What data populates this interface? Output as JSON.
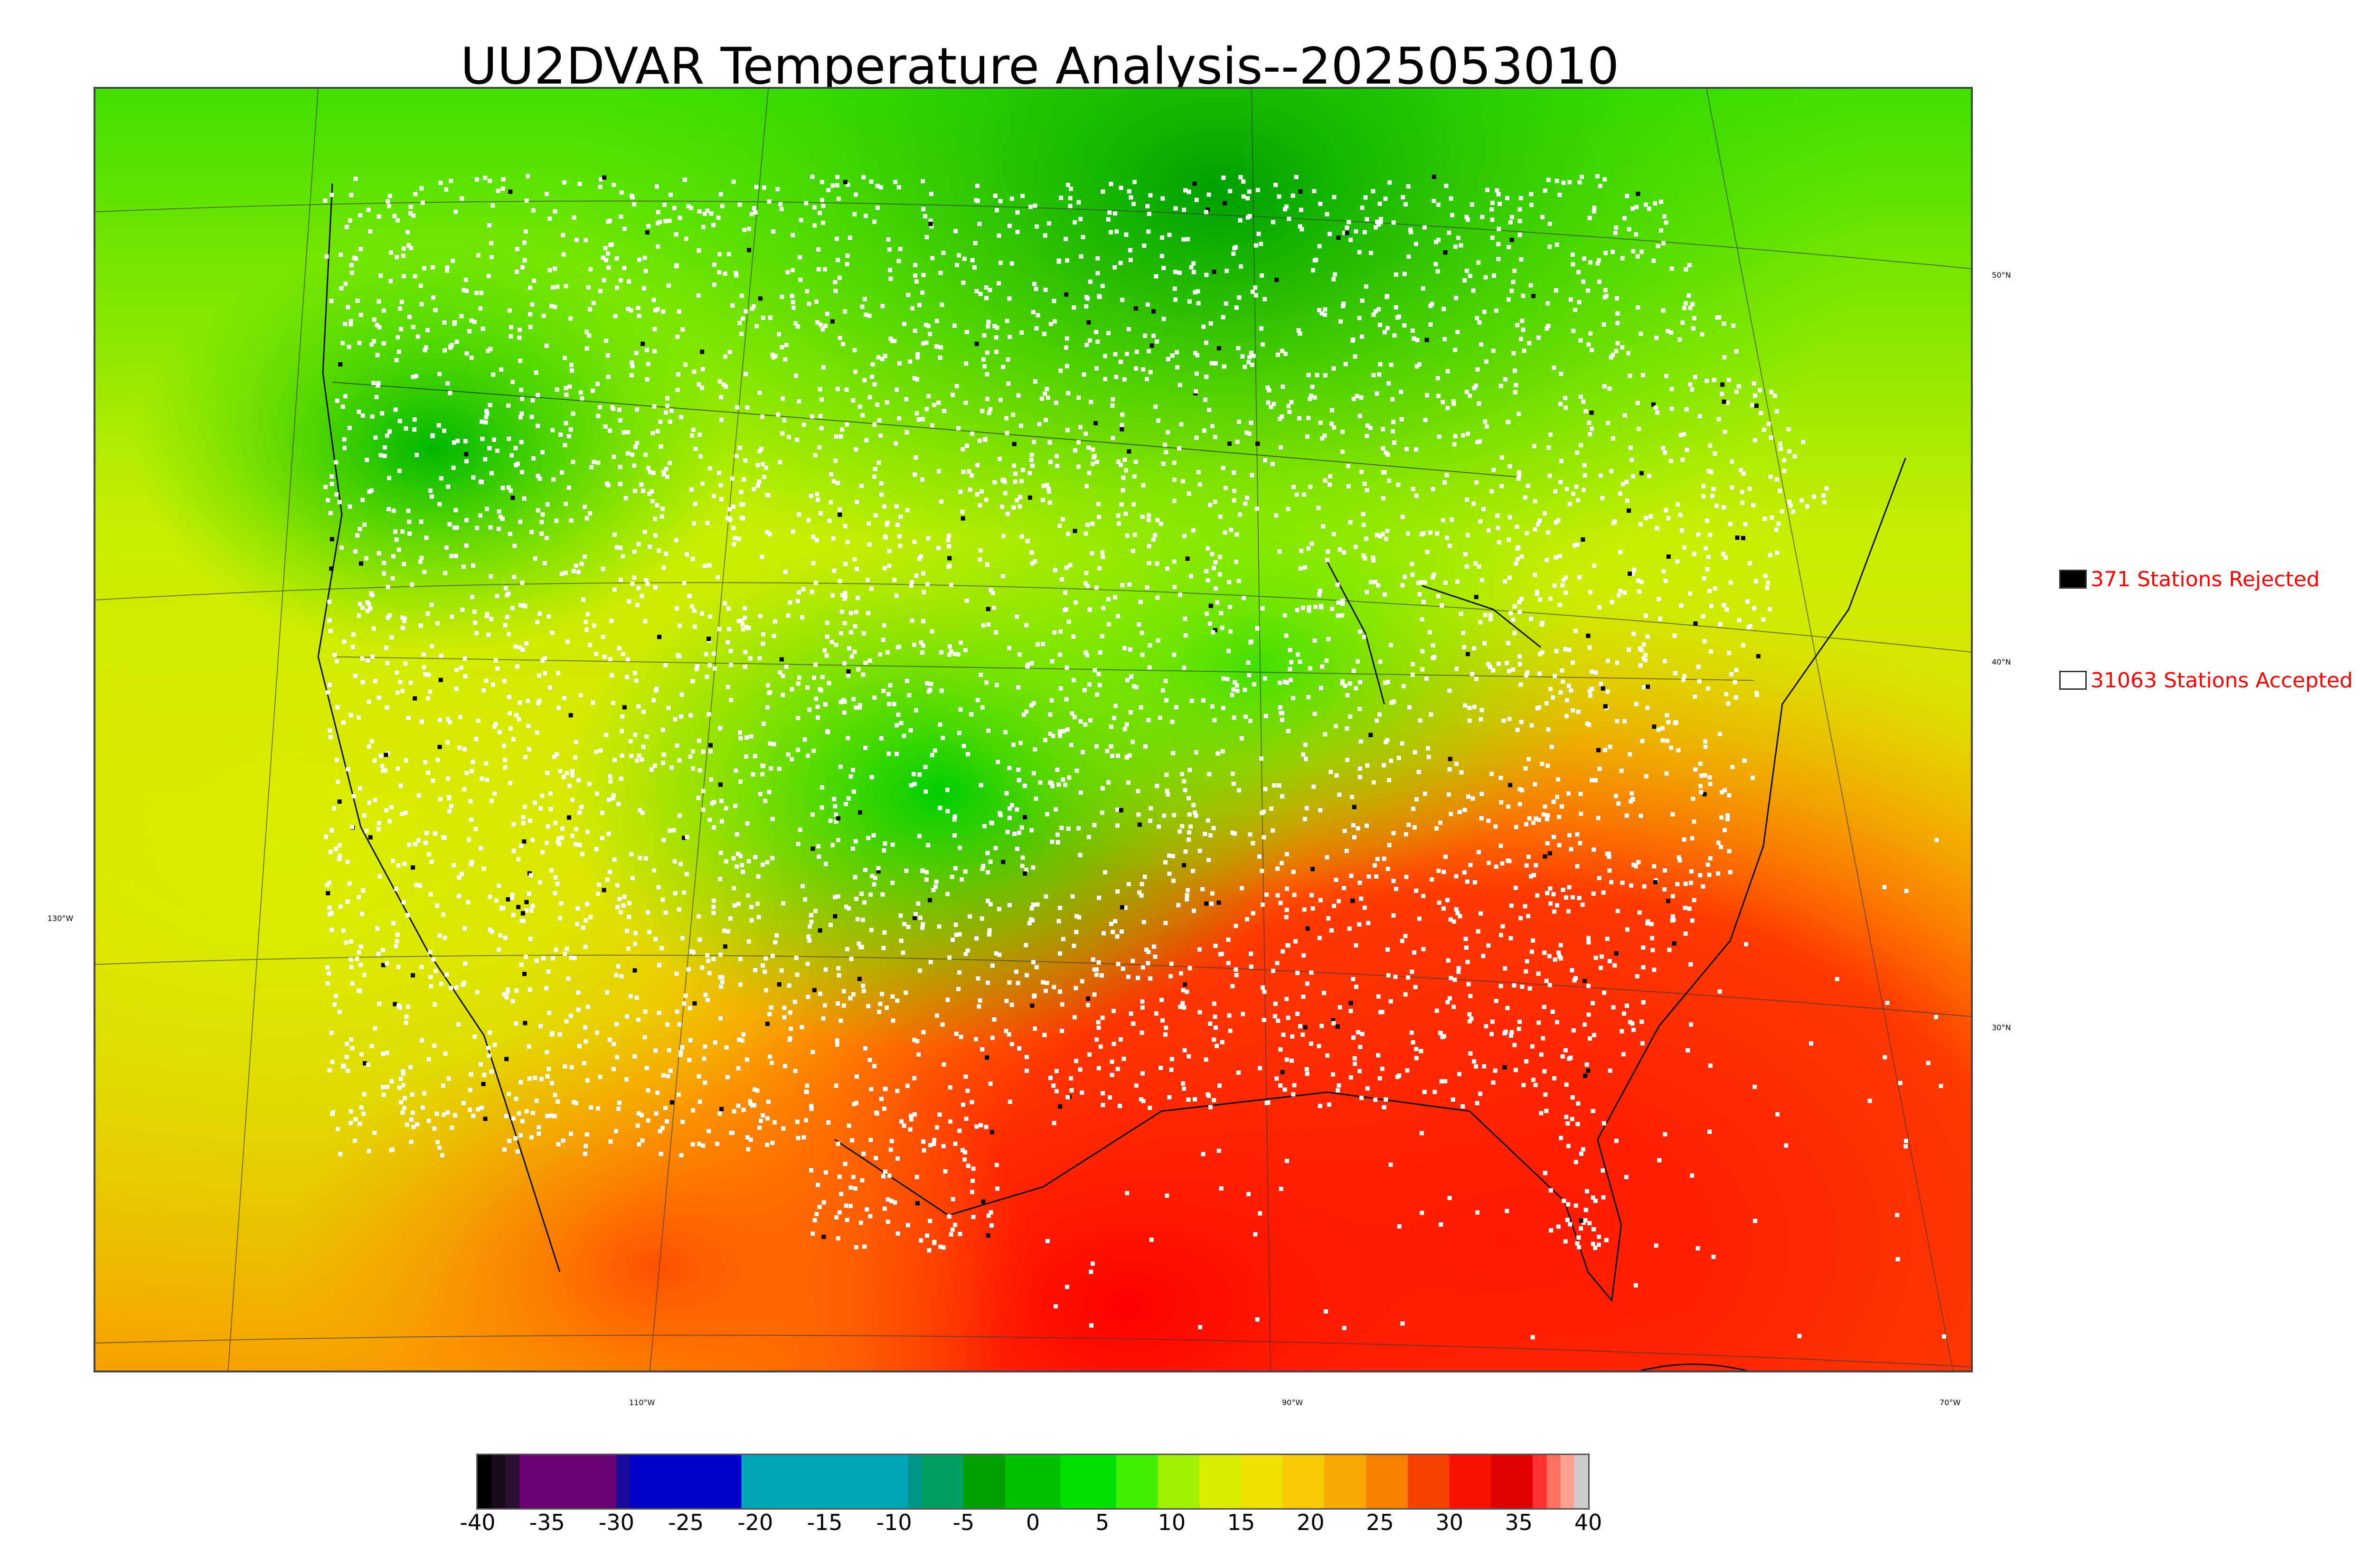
{
  "title": "UU2DVAR Temperature Analysis--2025053010",
  "map": {
    "lat_labels": [
      "50°N",
      "40°N",
      "30°N"
    ],
    "lon_labels": [
      "130°W",
      "110°W",
      "90°W",
      "70°W"
    ]
  },
  "legend": {
    "rejected": {
      "label": "371 Stations Rejected",
      "color": "#000000"
    },
    "accepted": {
      "label": "31063 Stations Accepted",
      "color": "#ffffff"
    }
  },
  "colorbar": {
    "range": [
      -40,
      40
    ],
    "ticks": [
      "-40",
      "-35",
      "-30",
      "-25",
      "-20",
      "-15",
      "-10",
      "-5",
      "0",
      "5",
      "10",
      "15",
      "20",
      "25",
      "30",
      "35",
      "40"
    ],
    "bands": [
      {
        "from": -40,
        "to": -39,
        "color": "#000000"
      },
      {
        "from": -39,
        "to": -38,
        "color": "#1a0a1a"
      },
      {
        "from": -38,
        "to": -37,
        "color": "#2a1030"
      },
      {
        "from": -37,
        "to": -30,
        "color": "#6a0075"
      },
      {
        "from": -30,
        "to": -29,
        "color": "#1a0a9a"
      },
      {
        "from": -29,
        "to": -21,
        "color": "#0000c8"
      },
      {
        "from": -21,
        "to": -9,
        "color": "#00a6b8"
      },
      {
        "from": -9,
        "to": -8,
        "color": "#00968a"
      },
      {
        "from": -8,
        "to": -5,
        "color": "#00a060"
      },
      {
        "from": -5,
        "to": -2,
        "color": "#00a000"
      },
      {
        "from": -2,
        "to": 2,
        "color": "#00c000"
      },
      {
        "from": 2,
        "to": 6,
        "color": "#00e000"
      },
      {
        "from": 6,
        "to": 9,
        "color": "#40f000"
      },
      {
        "from": 9,
        "to": 12,
        "color": "#a0f000"
      },
      {
        "from": 12,
        "to": 15,
        "color": "#d8ee00"
      },
      {
        "from": 15,
        "to": 18,
        "color": "#f0e000"
      },
      {
        "from": 18,
        "to": 21,
        "color": "#f8c800"
      },
      {
        "from": 21,
        "to": 24,
        "color": "#f8a800"
      },
      {
        "from": 24,
        "to": 27,
        "color": "#f88000"
      },
      {
        "from": 27,
        "to": 30,
        "color": "#f84000"
      },
      {
        "from": 30,
        "to": 33,
        "color": "#f81000"
      },
      {
        "from": 33,
        "to": 36,
        "color": "#e00000"
      },
      {
        "from": 36,
        "to": 37,
        "color": "#ff3030"
      },
      {
        "from": 37,
        "to": 38,
        "color": "#ff7060"
      },
      {
        "from": 38,
        "to": 39,
        "color": "#ffa090"
      },
      {
        "from": 39,
        "to": 40,
        "color": "#cccccc"
      }
    ]
  }
}
